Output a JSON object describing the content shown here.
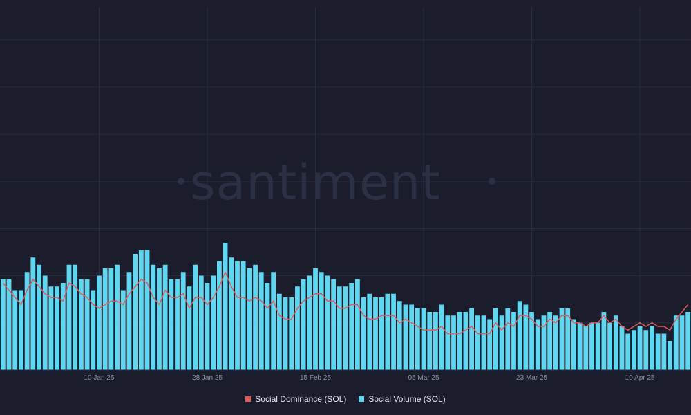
{
  "brand_watermark": "santiment",
  "colors": {
    "background": "#1b1d2d",
    "dominance": "#e05a5a",
    "volume": "#5fd7f0",
    "grid": "#2a2d40",
    "tick": "#8b90a8"
  },
  "legend": [
    {
      "label": "Social Dominance (SOL)",
      "color": "#e05a5a"
    },
    {
      "label": "Social Volume (SOL)",
      "color": "#5fd7f0"
    }
  ],
  "chart_data": {
    "type": "bar",
    "title": "",
    "xlabel": "",
    "ylabel": "",
    "grid": true,
    "legend_position": "bottom",
    "x_ticks": [
      {
        "index": 16,
        "label": "10 Jan 25"
      },
      {
        "index": 34,
        "label": "28 Jan 25"
      },
      {
        "index": 52,
        "label": "15 Feb 25"
      },
      {
        "index": 70,
        "label": "05 Mar 25"
      },
      {
        "index": 88,
        "label": "23 Mar 25"
      },
      {
        "index": 106,
        "label": "10 Apr 25"
      }
    ],
    "ylim": [
      0,
      100
    ],
    "series": [
      {
        "name": "Social Volume (SOL)",
        "type": "bar",
        "values": [
          25,
          25,
          22,
          22,
          27,
          31,
          29,
          26,
          23,
          23,
          24,
          29,
          29,
          25,
          25,
          22,
          26,
          28,
          28,
          29,
          22,
          27,
          32,
          33,
          33,
          29,
          28,
          29,
          25,
          25,
          27,
          23,
          29,
          26,
          24,
          26,
          30,
          35,
          31,
          30,
          30,
          28,
          29,
          27,
          24,
          27,
          21,
          20,
          20,
          23,
          25,
          26,
          28,
          27,
          26,
          25,
          23,
          23,
          24,
          25,
          20,
          21,
          20,
          20,
          21,
          21,
          19,
          18,
          18,
          17,
          17,
          16,
          16,
          18,
          15,
          15,
          16,
          16,
          17,
          15,
          15,
          14,
          17,
          15,
          17,
          16,
          19,
          18,
          16,
          14,
          15,
          16,
          15,
          17,
          17,
          14,
          13,
          12,
          13,
          13,
          16,
          13,
          15,
          12,
          10,
          11,
          12,
          11,
          12,
          10,
          10,
          8,
          15,
          15,
          16
        ]
      },
      {
        "name": "Social Dominance (SOL)",
        "type": "line",
        "values": [
          24,
          22,
          20,
          18,
          22,
          25,
          23,
          21,
          20,
          20,
          19,
          24,
          23,
          21,
          20,
          18,
          17,
          18,
          19,
          19,
          18,
          21,
          23,
          25,
          24,
          20,
          18,
          22,
          20,
          20,
          21,
          17,
          20,
          20,
          18,
          20,
          23,
          27,
          23,
          20,
          20,
          19,
          20,
          19,
          17,
          19,
          15,
          14,
          14,
          17,
          19,
          20,
          21,
          21,
          19,
          19,
          17,
          17,
          18,
          18,
          15,
          14,
          14,
          15,
          15,
          15,
          13,
          14,
          13,
          12,
          11,
          11,
          11,
          12,
          10,
          10,
          10,
          11,
          12,
          10,
          10,
          10,
          13,
          11,
          13,
          12,
          15,
          15,
          14,
          12,
          12,
          14,
          13,
          15,
          15,
          13,
          13,
          12,
          13,
          13,
          15,
          13,
          14,
          12,
          11,
          12,
          13,
          12,
          13,
          12,
          12,
          11,
          14,
          16,
          18
        ]
      }
    ]
  }
}
